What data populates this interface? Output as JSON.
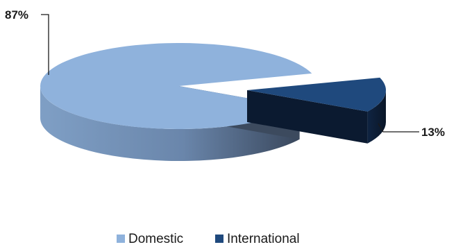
{
  "chart_data": {
    "type": "pie",
    "title": "",
    "categories": [
      "Domestic",
      "International"
    ],
    "values": [
      87,
      13
    ],
    "labels": [
      "87%",
      "13%"
    ],
    "colors": [
      "#8fb2dc",
      "#1f497d"
    ],
    "legend_position": "bottom",
    "style": "3d-exploded"
  }
}
